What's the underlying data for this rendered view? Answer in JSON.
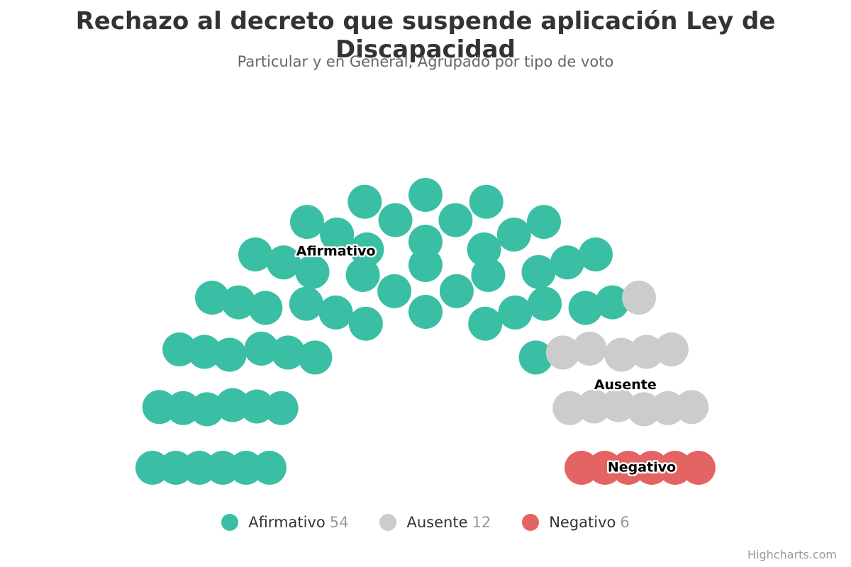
{
  "chart_data": {
    "type": "item",
    "title": "Rechazo al decreto que suspende aplicación Ley de Discapacidad",
    "subtitle": "Particular y en General, Agrupado por tipo de voto",
    "series": [
      {
        "name": "Afirmativo",
        "value": 54,
        "color": "#3abfa4"
      },
      {
        "name": "Ausente",
        "value": 12,
        "color": "#cccccc"
      },
      {
        "name": "Negativo",
        "value": 6,
        "color": "#e46363"
      }
    ],
    "rows": 6,
    "legend_position": "bottom"
  },
  "credits": "Highcharts.com"
}
